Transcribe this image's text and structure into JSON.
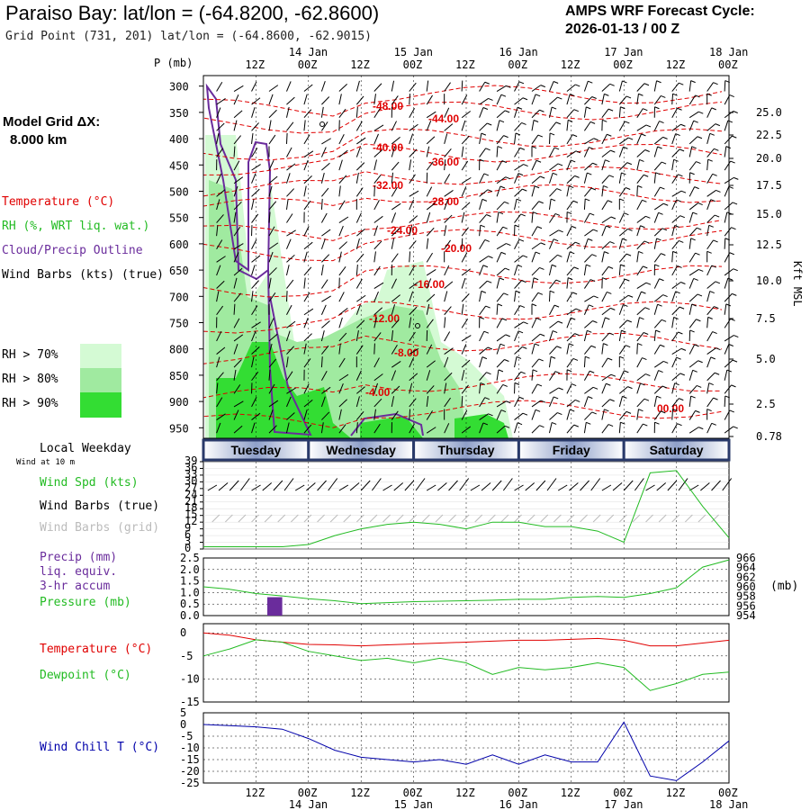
{
  "header": {
    "title": "Paraiso Bay:  lat/lon = (-64.8200, -62.8600)",
    "subtitle": "Grid Point (731, 201) lat/lon = (-64.8600, -62.9015)",
    "cycle_line1": "AMPS WRF Forecast Cycle:",
    "cycle_line2": "2026-01-13 / 00  Z",
    "grid_label_line1": "Model Grid ΔX:",
    "grid_label_line2": "8.000 km"
  },
  "legend": {
    "temperature": "Temperature (°C)",
    "rh": "RH (%, WRT liq. wat.)",
    "cloud": "Cloud/Precip Outline",
    "wind": "Wind Barbs (kts) (true)",
    "rh70": "RH > 70%",
    "rh80": "RH > 80%",
    "rh90": "RH > 90%",
    "rh_colors": [
      "#d4fad4",
      "#a0eaa0",
      "#33dd33"
    ],
    "local_weekday": "Local Weekday",
    "wind_at_10m": "Wind at 10 m",
    "wind_spd": "Wind Spd (kts)",
    "wind_barbs_true": "Wind Barbs (true)",
    "wind_barbs_grid": "Wind Barbs (grid)",
    "precip": "Precip (mm)",
    "liq_equiv": "liq. equiv.",
    "accum": "3-hr accum",
    "pressure": "Pressure (mb)",
    "temp2": "Temperature (°C)",
    "dewpoint": "Dewpoint (°C)",
    "wind_chill": "Wind Chill T (°C)",
    "pressure_unit": "(mb)"
  },
  "time_axis": {
    "top_p_label": "P (mb)",
    "hour_labels": [
      "12Z",
      "00Z",
      "12Z",
      "00Z",
      "12Z",
      "00Z",
      "12Z",
      "00Z",
      "12Z",
      "00Z"
    ],
    "date_labels": [
      "14 Jan",
      "15 Jan",
      "16 Jan",
      "17 Jan",
      "18 Jan"
    ],
    "weekdays": [
      "Tuesday",
      "Wednesday",
      "Thursday",
      "Friday",
      "Saturday"
    ]
  },
  "colors": {
    "temperature": "#e00000",
    "dewpoint": "#22bb22",
    "cloud": "#6a2c9c",
    "wind_chill": "#0000aa",
    "precip": "#6a2c9c",
    "grid_barb": "#bbbbbb"
  },
  "chart_data": [
    {
      "type": "heatmap",
      "p_ticks": [
        300,
        350,
        400,
        450,
        500,
        550,
        600,
        650,
        700,
        750,
        800,
        850,
        900,
        950
      ],
      "kft_ticks": [
        "25.0",
        "22.5",
        "20.0",
        "17.5",
        "15.0",
        "12.5",
        "10.0",
        "7.5",
        "5.0",
        "2.5",
        "0.78"
      ],
      "kft_label": "Kft MSL",
      "temp_contour_labels": [
        "-48.00",
        "-44.00",
        "-40.00",
        "-36.00",
        "-32.00",
        "-28.00",
        "-24.00",
        "-20.00",
        "-16.00",
        "-12.00",
        "-8.00",
        "-4.00",
        "00.00"
      ]
    },
    {
      "type": "line",
      "name": "wind_speed",
      "y_ticks": [
        "39",
        "36",
        "33",
        "30",
        "27",
        "24",
        "21",
        "18",
        "15",
        "12",
        "9",
        "6",
        "3",
        "0"
      ],
      "ylim": [
        0,
        39
      ],
      "x_hours": [
        0,
        6,
        12,
        18,
        24,
        30,
        36,
        42,
        48,
        54,
        60,
        66,
        72,
        78,
        84,
        90,
        96,
        102,
        108,
        114,
        120
      ],
      "values": [
        1,
        1,
        1,
        1,
        2,
        6,
        9,
        11,
        12,
        11,
        9,
        12,
        12,
        10,
        10,
        8,
        3,
        34,
        35,
        19,
        5
      ]
    },
    {
      "type": "line",
      "name": "pressure",
      "y_ticks_left": [
        "2.5",
        "2.0",
        "1.5",
        "1.0",
        "0.5",
        "0.0"
      ],
      "y_ticks_right": [
        "966",
        "964",
        "962",
        "960",
        "958",
        "956",
        "954"
      ],
      "ylim_left": [
        0,
        2.5
      ],
      "ylim_right": [
        954,
        966
      ],
      "x_hours": [
        0,
        6,
        12,
        18,
        24,
        30,
        36,
        42,
        48,
        54,
        60,
        66,
        72,
        78,
        84,
        90,
        96,
        102,
        108,
        114,
        120
      ],
      "pressure": [
        960.0,
        959.5,
        958.6,
        958.1,
        957.5,
        957.1,
        956.5,
        956.7,
        956.9,
        957.0,
        957.1,
        957.2,
        957.4,
        957.4,
        957.8,
        958.0,
        957.8,
        958.6,
        959.8,
        964.1,
        965.6
      ],
      "precip_x": [
        15,
        18
      ],
      "precip_values": [
        0.8
      ]
    },
    {
      "type": "line",
      "name": "temperature_dewpoint",
      "y_ticks": [
        "0",
        "-5",
        "-10",
        "-15"
      ],
      "ylim": [
        -15,
        2
      ],
      "x_hours": [
        0,
        6,
        12,
        18,
        24,
        30,
        36,
        42,
        48,
        54,
        60,
        66,
        72,
        78,
        84,
        90,
        96,
        102,
        108,
        114,
        120
      ],
      "temperature": [
        0,
        -0.5,
        -1.5,
        -2.0,
        -2.5,
        -2.6,
        -2.8,
        -2.6,
        -2.4,
        -2.2,
        -2.0,
        -1.8,
        -1.6,
        -1.6,
        -1.4,
        -1.2,
        -1.6,
        -2.8,
        -2.8,
        -2.2,
        -1.6
      ],
      "dewpoint": [
        -5,
        -3.5,
        -1.5,
        -2.0,
        -4.0,
        -5.0,
        -6.0,
        -5.5,
        -6.5,
        -5.5,
        -6.5,
        -9.0,
        -7.5,
        -8.0,
        -7.5,
        -6.5,
        -7.5,
        -12.5,
        -11.0,
        -9.0,
        -8.5
      ]
    },
    {
      "type": "line",
      "name": "wind_chill",
      "y_ticks": [
        "5",
        "0",
        "-5",
        "-10",
        "-15",
        "-20",
        "-25"
      ],
      "ylim": [
        -25,
        5
      ],
      "x_hours": [
        0,
        6,
        12,
        18,
        24,
        30,
        36,
        42,
        48,
        54,
        60,
        66,
        72,
        78,
        84,
        90,
        96,
        102,
        108,
        114,
        120
      ],
      "values": [
        0,
        -0.5,
        -1,
        -2,
        -6,
        -11,
        -14,
        -15,
        -16,
        -15,
        -17,
        -13,
        -17,
        -13,
        -16,
        -16,
        1,
        -22,
        -24,
        -16,
        -7
      ]
    }
  ]
}
